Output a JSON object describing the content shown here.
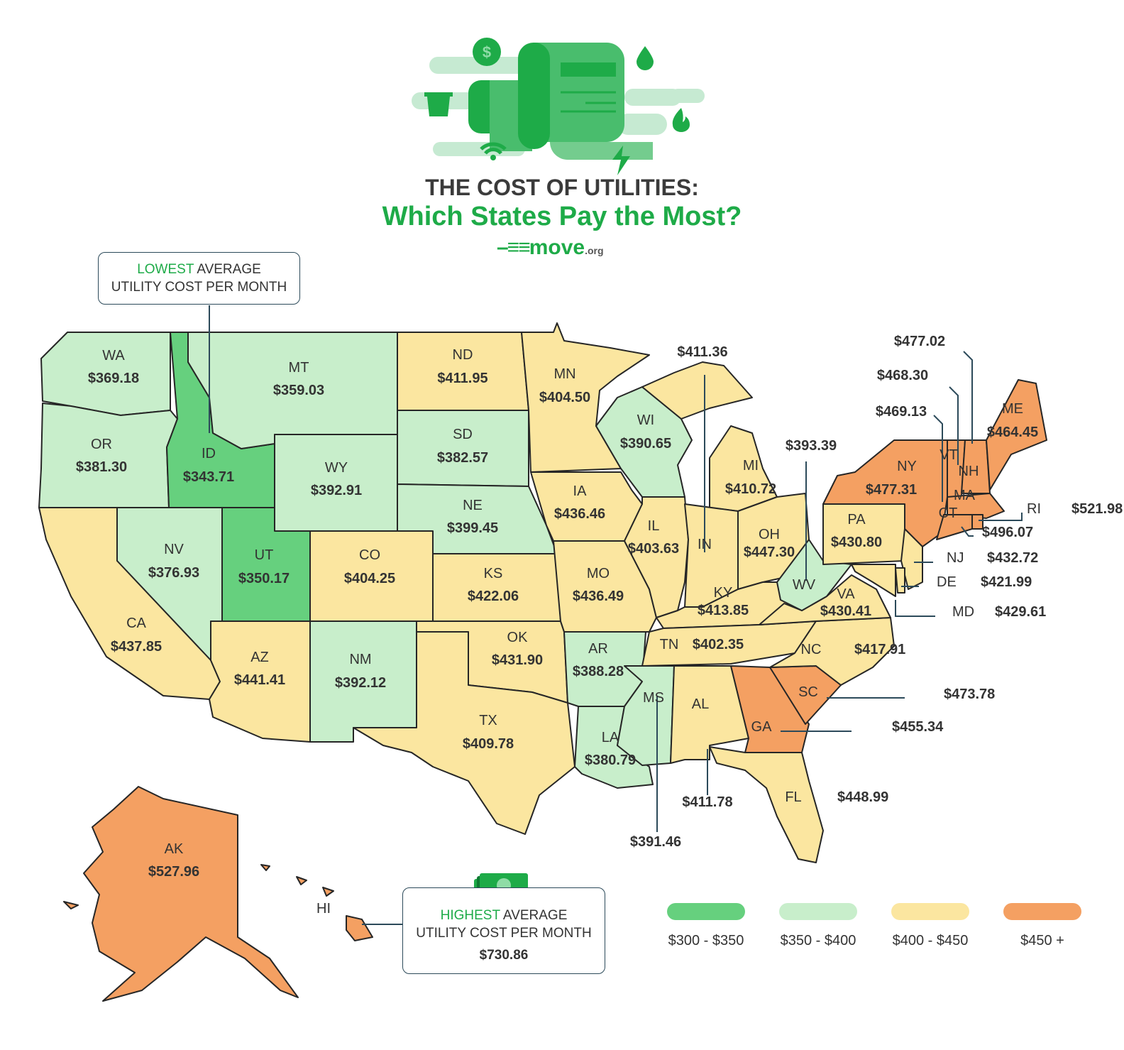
{
  "header": {
    "title": "THE COST OF UTILITIES:",
    "subtitle": "Which States Pay the Most?",
    "logo": "move",
    "logo_suffix": ".org"
  },
  "colors": {
    "c300": "#66d07e",
    "c350": "#c8eecb",
    "c400": "#fbe6a0",
    "c450": "#f4a062",
    "border": "#262626",
    "leader": "#2c4a5a",
    "accent": "#1eab48"
  },
  "lowest_callout": {
    "highlight": "LOWEST",
    "line1_rest": " AVERAGE",
    "line2": "UTILITY COST PER MONTH"
  },
  "highest_callout": {
    "highlight": "HIGHEST",
    "line1_rest": " AVERAGE",
    "line2": "UTILITY COST PER MONTH",
    "value": "$730.86"
  },
  "legend": [
    {
      "label": "$300 - $350",
      "color": "#66d07e"
    },
    {
      "label": "$350 - $400",
      "color": "#c8eecb"
    },
    {
      "label": "$400 - $450",
      "color": "#fbe6a0"
    },
    {
      "label": "$450 +",
      "color": "#f4a062"
    }
  ],
  "states": {
    "WA": {
      "label": "WA",
      "value": "$369.18",
      "cat": "c350"
    },
    "OR": {
      "label": "OR",
      "value": "$381.30",
      "cat": "c350"
    },
    "ID": {
      "label": "ID",
      "value": "$343.71",
      "cat": "c300"
    },
    "MT": {
      "label": "MT",
      "value": "$359.03",
      "cat": "c350"
    },
    "WY": {
      "label": "WY",
      "value": "$392.91",
      "cat": "c350"
    },
    "NV": {
      "label": "NV",
      "value": "$376.93",
      "cat": "c350"
    },
    "UT": {
      "label": "UT",
      "value": "$350.17",
      "cat": "c300"
    },
    "CA": {
      "label": "CA",
      "value": "$437.85",
      "cat": "c400"
    },
    "AZ": {
      "label": "AZ",
      "value": "$441.41",
      "cat": "c400"
    },
    "CO": {
      "label": "CO",
      "value": "$404.25",
      "cat": "c400"
    },
    "NM": {
      "label": "NM",
      "value": "$392.12",
      "cat": "c350"
    },
    "ND": {
      "label": "ND",
      "value": "$411.95",
      "cat": "c400"
    },
    "SD": {
      "label": "SD",
      "value": "$382.57",
      "cat": "c350"
    },
    "NE": {
      "label": "NE",
      "value": "$399.45",
      "cat": "c350"
    },
    "KS": {
      "label": "KS",
      "value": "$422.06",
      "cat": "c400"
    },
    "OK": {
      "label": "OK",
      "value": "$431.90",
      "cat": "c400"
    },
    "TX": {
      "label": "TX",
      "value": "$409.78",
      "cat": "c400"
    },
    "MN": {
      "label": "MN",
      "value": "$404.50",
      "cat": "c400"
    },
    "IA": {
      "label": "IA",
      "value": "$436.46",
      "cat": "c400"
    },
    "MO": {
      "label": "MO",
      "value": "$436.49",
      "cat": "c400"
    },
    "AR": {
      "label": "AR",
      "value": "$388.28",
      "cat": "c350"
    },
    "LA": {
      "label": "LA",
      "value": "$380.79",
      "cat": "c350"
    },
    "WI": {
      "label": "WI",
      "value": "$390.65",
      "cat": "c350"
    },
    "IL": {
      "label": "IL",
      "value": "$403.63",
      "cat": "c400"
    },
    "MI": {
      "label": "MI",
      "value": "$410.72",
      "cat": "c400"
    },
    "IN": {
      "label": "IN",
      "value": "$411.36",
      "cat": "c400"
    },
    "OH": {
      "label": "OH",
      "value": "$447.30",
      "cat": "c400"
    },
    "KY": {
      "label": "KY",
      "value": "$413.85",
      "cat": "c400"
    },
    "TN": {
      "label": "TN",
      "value": "$402.35",
      "cat": "c400"
    },
    "MS": {
      "label": "MS",
      "value": "$391.46",
      "cat": "c350"
    },
    "AL": {
      "label": "AL",
      "value": "$411.78",
      "cat": "c400"
    },
    "GA": {
      "label": "GA",
      "value": "$455.34",
      "cat": "c450"
    },
    "FL": {
      "label": "FL",
      "value": "$448.99",
      "cat": "c400"
    },
    "SC": {
      "label": "SC",
      "value": "$473.78",
      "cat": "c450"
    },
    "NC": {
      "label": "NC",
      "value": "$417.91",
      "cat": "c400"
    },
    "VA": {
      "label": "VA",
      "value": "$430.41",
      "cat": "c400"
    },
    "WV": {
      "label": "WV",
      "value": "$393.39",
      "cat": "c350"
    },
    "PA": {
      "label": "PA",
      "value": "$430.80",
      "cat": "c400"
    },
    "NY": {
      "label": "NY",
      "value": "$477.31",
      "cat": "c450"
    },
    "VT": {
      "label": "VT",
      "value": "$469.13",
      "cat": "c450"
    },
    "NH": {
      "label": "NH",
      "value": "$468.30",
      "cat": "c450"
    },
    "ME": {
      "label": "ME",
      "value": "$464.45",
      "cat": "c450"
    },
    "MA": {
      "label": "MA",
      "value": "$477.02",
      "cat": "c450"
    },
    "CT": {
      "label": "CT",
      "value": "$496.07",
      "cat": "c450"
    },
    "RI": {
      "label": "RI",
      "value": "$521.98",
      "cat": "c450"
    },
    "NJ": {
      "label": "NJ",
      "value": "$432.72",
      "cat": "c400"
    },
    "DE": {
      "label": "DE",
      "value": "$421.99",
      "cat": "c400"
    },
    "MD": {
      "label": "MD",
      "value": "$429.61",
      "cat": "c400"
    },
    "AK": {
      "label": "AK",
      "value": "$527.96",
      "cat": "c450"
    },
    "HI": {
      "label": "HI",
      "value": "$730.86",
      "cat": "c450"
    }
  }
}
